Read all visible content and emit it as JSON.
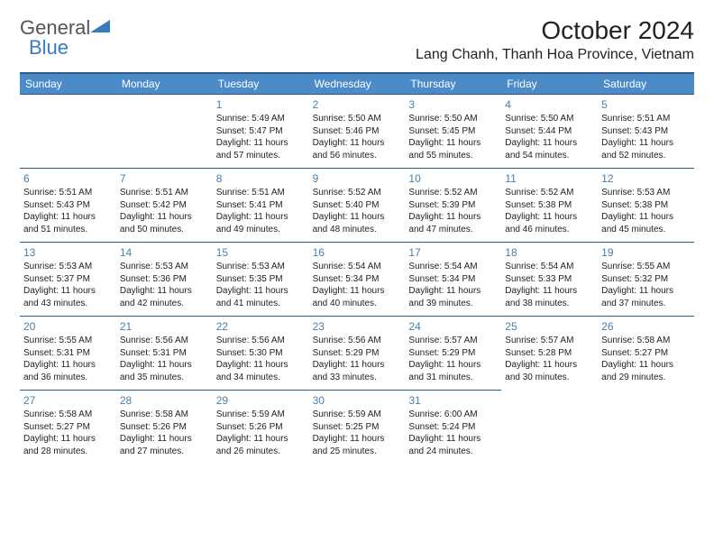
{
  "brand": {
    "part1": "General",
    "part2": "Blue"
  },
  "header": {
    "month_title": "October 2024",
    "location": "Lang Chanh, Thanh Hoa Province, Vietnam"
  },
  "colors": {
    "header_bg": "#4a8bc8",
    "header_border": "#2d5a8a",
    "daynum": "#4a7fa8",
    "text": "#222222",
    "white": "#ffffff"
  },
  "typography": {
    "month_title_fontsize": 28,
    "location_fontsize": 16,
    "dow_fontsize": 12,
    "daynum_fontsize": 12,
    "body_fontsize": 10
  },
  "days_of_week": [
    "Sunday",
    "Monday",
    "Tuesday",
    "Wednesday",
    "Thursday",
    "Friday",
    "Saturday"
  ],
  "calendar": {
    "leading_blanks": 2,
    "days": [
      {
        "n": 1,
        "sunrise": "5:49 AM",
        "sunset": "5:47 PM",
        "daylight": "11 hours and 57 minutes."
      },
      {
        "n": 2,
        "sunrise": "5:50 AM",
        "sunset": "5:46 PM",
        "daylight": "11 hours and 56 minutes."
      },
      {
        "n": 3,
        "sunrise": "5:50 AM",
        "sunset": "5:45 PM",
        "daylight": "11 hours and 55 minutes."
      },
      {
        "n": 4,
        "sunrise": "5:50 AM",
        "sunset": "5:44 PM",
        "daylight": "11 hours and 54 minutes."
      },
      {
        "n": 5,
        "sunrise": "5:51 AM",
        "sunset": "5:43 PM",
        "daylight": "11 hours and 52 minutes."
      },
      {
        "n": 6,
        "sunrise": "5:51 AM",
        "sunset": "5:43 PM",
        "daylight": "11 hours and 51 minutes."
      },
      {
        "n": 7,
        "sunrise": "5:51 AM",
        "sunset": "5:42 PM",
        "daylight": "11 hours and 50 minutes."
      },
      {
        "n": 8,
        "sunrise": "5:51 AM",
        "sunset": "5:41 PM",
        "daylight": "11 hours and 49 minutes."
      },
      {
        "n": 9,
        "sunrise": "5:52 AM",
        "sunset": "5:40 PM",
        "daylight": "11 hours and 48 minutes."
      },
      {
        "n": 10,
        "sunrise": "5:52 AM",
        "sunset": "5:39 PM",
        "daylight": "11 hours and 47 minutes."
      },
      {
        "n": 11,
        "sunrise": "5:52 AM",
        "sunset": "5:38 PM",
        "daylight": "11 hours and 46 minutes."
      },
      {
        "n": 12,
        "sunrise": "5:53 AM",
        "sunset": "5:38 PM",
        "daylight": "11 hours and 45 minutes."
      },
      {
        "n": 13,
        "sunrise": "5:53 AM",
        "sunset": "5:37 PM",
        "daylight": "11 hours and 43 minutes."
      },
      {
        "n": 14,
        "sunrise": "5:53 AM",
        "sunset": "5:36 PM",
        "daylight": "11 hours and 42 minutes."
      },
      {
        "n": 15,
        "sunrise": "5:53 AM",
        "sunset": "5:35 PM",
        "daylight": "11 hours and 41 minutes."
      },
      {
        "n": 16,
        "sunrise": "5:54 AM",
        "sunset": "5:34 PM",
        "daylight": "11 hours and 40 minutes."
      },
      {
        "n": 17,
        "sunrise": "5:54 AM",
        "sunset": "5:34 PM",
        "daylight": "11 hours and 39 minutes."
      },
      {
        "n": 18,
        "sunrise": "5:54 AM",
        "sunset": "5:33 PM",
        "daylight": "11 hours and 38 minutes."
      },
      {
        "n": 19,
        "sunrise": "5:55 AM",
        "sunset": "5:32 PM",
        "daylight": "11 hours and 37 minutes."
      },
      {
        "n": 20,
        "sunrise": "5:55 AM",
        "sunset": "5:31 PM",
        "daylight": "11 hours and 36 minutes."
      },
      {
        "n": 21,
        "sunrise": "5:56 AM",
        "sunset": "5:31 PM",
        "daylight": "11 hours and 35 minutes."
      },
      {
        "n": 22,
        "sunrise": "5:56 AM",
        "sunset": "5:30 PM",
        "daylight": "11 hours and 34 minutes."
      },
      {
        "n": 23,
        "sunrise": "5:56 AM",
        "sunset": "5:29 PM",
        "daylight": "11 hours and 33 minutes."
      },
      {
        "n": 24,
        "sunrise": "5:57 AM",
        "sunset": "5:29 PM",
        "daylight": "11 hours and 31 minutes."
      },
      {
        "n": 25,
        "sunrise": "5:57 AM",
        "sunset": "5:28 PM",
        "daylight": "11 hours and 30 minutes."
      },
      {
        "n": 26,
        "sunrise": "5:58 AM",
        "sunset": "5:27 PM",
        "daylight": "11 hours and 29 minutes."
      },
      {
        "n": 27,
        "sunrise": "5:58 AM",
        "sunset": "5:27 PM",
        "daylight": "11 hours and 28 minutes."
      },
      {
        "n": 28,
        "sunrise": "5:58 AM",
        "sunset": "5:26 PM",
        "daylight": "11 hours and 27 minutes."
      },
      {
        "n": 29,
        "sunrise": "5:59 AM",
        "sunset": "5:26 PM",
        "daylight": "11 hours and 26 minutes."
      },
      {
        "n": 30,
        "sunrise": "5:59 AM",
        "sunset": "5:25 PM",
        "daylight": "11 hours and 25 minutes."
      },
      {
        "n": 31,
        "sunrise": "6:00 AM",
        "sunset": "5:24 PM",
        "daylight": "11 hours and 24 minutes."
      }
    ]
  },
  "labels": {
    "sunrise": "Sunrise:",
    "sunset": "Sunset:",
    "daylight": "Daylight:"
  }
}
